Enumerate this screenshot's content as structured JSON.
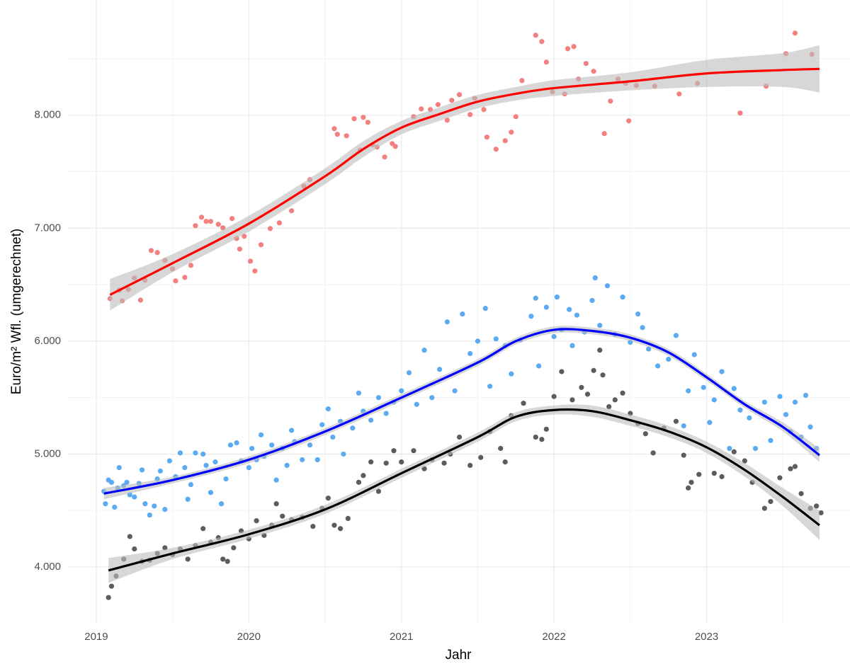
{
  "chart_data": {
    "type": "scatter",
    "xlabel": "Jahr",
    "ylabel": "Euro/m² Wfl. (umgerechnet)",
    "xlim": [
      2018.81,
      2023.94
    ],
    "ylim": [
      3505,
      9020
    ],
    "xticks": [
      2019,
      2020,
      2021,
      2022,
      2023
    ],
    "yticks": [
      {
        "value": 4000,
        "label": "4.000"
      },
      {
        "value": 5000,
        "label": "5.000"
      },
      {
        "value": 6000,
        "label": "6.000"
      },
      {
        "value": 7000,
        "label": "7.000"
      },
      {
        "value": 8000,
        "label": "8.000"
      }
    ],
    "grid": true,
    "minor_grid": true,
    "band_color": "#bdbdbd",
    "series": [
      {
        "color": "#f37f7f",
        "x": [
          2019.09,
          2019.15,
          2019.17,
          2019.21,
          2019.25,
          2019.29,
          2019.32,
          2019.36,
          2019.4,
          2019.45,
          2019.5,
          2019.52,
          2019.58,
          2019.62,
          2019.65,
          2019.69,
          2019.72,
          2019.75,
          2019.8,
          2019.83,
          2019.89,
          2019.92,
          2019.94,
          2019.97,
          2020.01,
          2020.04,
          2020.08,
          2020.14,
          2020.2,
          2020.28,
          2020.36,
          2020.4,
          2020.56,
          2020.58,
          2020.64,
          2020.69,
          2020.73,
          2020.75,
          2020.78,
          2020.81,
          2020.84,
          2020.89,
          2020.94,
          2020.96,
          2021.08,
          2021.13,
          2021.19,
          2021.24,
          2021.3,
          2021.33,
          2021.38,
          2021.45,
          2021.48,
          2021.54,
          2021.56,
          2021.62,
          2021.68,
          2021.72,
          2021.75,
          2021.79,
          2021.88,
          2021.92,
          2021.95,
          2021.99,
          2022.07,
          2022.09,
          2022.13,
          2022.16,
          2022.21,
          2022.26,
          2022.33,
          2022.37,
          2022.42,
          2022.47,
          2022.49,
          2022.54,
          2022.66,
          2022.82,
          2022.94,
          2023.22,
          2023.39,
          2023.52,
          2023.58,
          2023.69
        ],
        "values": [
          6376,
          6451,
          6357,
          6458,
          6558,
          6363,
          6539,
          6802,
          6784,
          6715,
          6639,
          6533,
          6564,
          6671,
          7022,
          7097,
          7060,
          7060,
          7034,
          7003,
          7085,
          6909,
          6815,
          6928,
          6708,
          6621,
          6853,
          6997,
          7047,
          7154,
          7373,
          7429,
          7881,
          7831,
          7818,
          7969,
          7692,
          7981,
          7937,
          7737,
          7718,
          7630,
          7749,
          7724,
          7987,
          8056,
          8050,
          8094,
          7956,
          8132,
          8182,
          8006,
          8150,
          8050,
          7806,
          7699,
          7774,
          7850,
          7987,
          8307,
          8708,
          8652,
          8470,
          8207,
          8188,
          8589,
          8608,
          8320,
          8458,
          8389,
          7837,
          8125,
          8320,
          8282,
          7950,
          8263,
          8257,
          8188,
          8282,
          8019,
          8257,
          8545,
          8727,
          8539
        ]
      },
      {
        "color": "#5aabf2",
        "x": [
          2019.05,
          2019.06,
          2019.08,
          2019.1,
          2019.12,
          2019.14,
          2019.15,
          2019.18,
          2019.2,
          2019.22,
          2019.25,
          2019.28,
          2019.3,
          2019.32,
          2019.35,
          2019.38,
          2019.4,
          2019.42,
          2019.45,
          2019.48,
          2019.52,
          2019.55,
          2019.58,
          2019.6,
          2019.62,
          2019.65,
          2019.7,
          2019.72,
          2019.75,
          2019.78,
          2019.82,
          2019.85,
          2019.88,
          2019.92,
          2019.95,
          2020.0,
          2020.02,
          2020.05,
          2020.08,
          2020.1,
          2020.15,
          2020.18,
          2020.22,
          2020.25,
          2020.28,
          2020.3,
          2020.35,
          2020.4,
          2020.45,
          2020.48,
          2020.52,
          2020.55,
          2020.6,
          2020.62,
          2020.68,
          2020.72,
          2020.75,
          2020.8,
          2020.85,
          2020.9,
          2020.95,
          2021.0,
          2021.05,
          2021.1,
          2021.15,
          2021.2,
          2021.25,
          2021.3,
          2021.35,
          2021.4,
          2021.45,
          2021.5,
          2021.55,
          2021.58,
          2021.62,
          2021.68,
          2021.72,
          2021.78,
          2021.85,
          2021.88,
          2021.9,
          2021.95,
          2022.0,
          2022.02,
          2022.05,
          2022.1,
          2022.12,
          2022.15,
          2022.2,
          2022.25,
          2022.27,
          2022.3,
          2022.35,
          2022.4,
          2022.45,
          2022.5,
          2022.55,
          2022.58,
          2022.62,
          2022.68,
          2022.75,
          2022.8,
          2022.85,
          2022.88,
          2022.92,
          2022.98,
          2023.02,
          2023.05,
          2023.1,
          2023.15,
          2023.18,
          2023.22,
          2023.28,
          2023.32,
          2023.38,
          2023.42,
          2023.48,
          2023.52,
          2023.55,
          2023.58,
          2023.62,
          2023.65,
          2023.68,
          2023.72
        ],
        "values": [
          4670,
          4560,
          4770,
          4750,
          4530,
          4700,
          4880,
          4720,
          4750,
          4640,
          4620,
          4740,
          4860,
          4560,
          4460,
          4540,
          4780,
          4850,
          4510,
          4940,
          4800,
          5010,
          4880,
          4600,
          4730,
          5010,
          5000,
          4900,
          4660,
          4930,
          4560,
          4780,
          5080,
          5100,
          4940,
          4880,
          5050,
          4950,
          5170,
          4980,
          5080,
          4770,
          5050,
          4900,
          5210,
          5110,
          4950,
          5080,
          4950,
          5260,
          5400,
          5150,
          5290,
          5000,
          5230,
          5540,
          5380,
          5300,
          5500,
          5360,
          5460,
          5560,
          5720,
          5440,
          5920,
          5500,
          5750,
          6170,
          5560,
          6240,
          5890,
          6000,
          6290,
          5600,
          6020,
          5960,
          5710,
          6010,
          6220,
          6380,
          5780,
          6300,
          6040,
          6390,
          6100,
          6280,
          5960,
          6230,
          6080,
          6360,
          6560,
          6140,
          6490,
          6060,
          6390,
          5990,
          6240,
          6120,
          5930,
          5780,
          5840,
          6050,
          5250,
          5560,
          5880,
          5590,
          5280,
          5480,
          5730,
          5050,
          5580,
          5390,
          5320,
          5050,
          5460,
          5120,
          5510,
          5350,
          5200,
          5460,
          5150,
          5520,
          5240,
          5050
        ]
      },
      {
        "color": "#5c5c5c",
        "x": [
          2019.08,
          2019.1,
          2019.13,
          2019.18,
          2019.22,
          2019.25,
          2019.3,
          2019.35,
          2019.4,
          2019.45,
          2019.5,
          2019.55,
          2019.6,
          2019.65,
          2019.7,
          2019.75,
          2019.8,
          2019.83,
          2019.86,
          2019.9,
          2019.95,
          2020.0,
          2020.05,
          2020.1,
          2020.15,
          2020.18,
          2020.22,
          2020.28,
          2020.35,
          2020.42,
          2020.48,
          2020.52,
          2020.56,
          2020.6,
          2020.65,
          2020.72,
          2020.75,
          2020.8,
          2020.85,
          2020.9,
          2020.95,
          2021.0,
          2021.08,
          2021.15,
          2021.2,
          2021.28,
          2021.32,
          2021.38,
          2021.45,
          2021.52,
          2021.58,
          2021.65,
          2021.68,
          2021.72,
          2021.8,
          2021.88,
          2021.92,
          2021.95,
          2022.0,
          2022.05,
          2022.12,
          2022.18,
          2022.22,
          2022.26,
          2022.3,
          2022.32,
          2022.36,
          2022.4,
          2022.45,
          2022.5,
          2022.55,
          2022.6,
          2022.65,
          2022.72,
          2022.8,
          2022.85,
          2022.88,
          2022.9,
          2022.95,
          2023.05,
          2023.1,
          2023.18,
          2023.25,
          2023.3,
          2023.38,
          2023.42,
          2023.48,
          2023.55,
          2023.58,
          2023.62,
          2023.68,
          2023.72,
          2023.75
        ],
        "values": [
          3730,
          3830,
          3920,
          4070,
          4270,
          4160,
          4050,
          4060,
          4120,
          4170,
          4110,
          4160,
          4070,
          4190,
          4340,
          4220,
          4260,
          4070,
          4050,
          4170,
          4320,
          4250,
          4410,
          4280,
          4370,
          4560,
          4450,
          4420,
          4440,
          4360,
          4520,
          4610,
          4370,
          4340,
          4430,
          4750,
          4810,
          4930,
          4670,
          4920,
          5030,
          4930,
          5030,
          4870,
          4950,
          4920,
          5000,
          5150,
          4900,
          4970,
          5200,
          5050,
          4930,
          5340,
          5450,
          5150,
          5130,
          5220,
          5510,
          5730,
          5480,
          5590,
          5530,
          5740,
          5920,
          5700,
          5420,
          5480,
          5540,
          5360,
          5270,
          5180,
          5010,
          5230,
          5290,
          4990,
          4700,
          4750,
          4820,
          4830,
          4800,
          5020,
          4940,
          4750,
          4520,
          4580,
          4790,
          4870,
          4890,
          4650,
          4520,
          4540,
          4480
        ]
      }
    ],
    "fits": [
      {
        "color": "#ff0000",
        "x": [
          2019.09,
          2019.5,
          2020,
          2020.5,
          2020.75,
          2021,
          2021.25,
          2021.5,
          2021.75,
          2022,
          2022.5,
          2023,
          2023.5,
          2023.74
        ],
        "values": [
          6410,
          6690,
          7040,
          7460,
          7700,
          7890,
          8010,
          8120,
          8190,
          8240,
          8300,
          8370,
          8400,
          8410
        ],
        "lower": [
          6270,
          6610,
          6970,
          7390,
          7630,
          7830,
          7950,
          8060,
          8130,
          8170,
          8220,
          8250,
          8250,
          8200
        ],
        "upper": [
          6550,
          6770,
          7110,
          7530,
          7770,
          7950,
          8070,
          8180,
          8250,
          8310,
          8380,
          8490,
          8550,
          8620
        ]
      },
      {
        "color": "#0000ff",
        "x": [
          2019.05,
          2019.5,
          2020,
          2020.5,
          2021,
          2021.5,
          2021.75,
          2022,
          2022.25,
          2022.5,
          2022.75,
          2023,
          2023.25,
          2023.5,
          2023.74
        ],
        "values": [
          4650,
          4770,
          4950,
          5200,
          5500,
          5810,
          6000,
          6100,
          6090,
          6030,
          5900,
          5680,
          5440,
          5240,
          4990
        ],
        "lower": [
          4600,
          4740,
          4920,
          5170,
          5470,
          5780,
          5970,
          6070,
          6060,
          6000,
          5870,
          5650,
          5410,
          5200,
          4930
        ],
        "upper": [
          4700,
          4800,
          4980,
          5230,
          5530,
          5840,
          6030,
          6130,
          6120,
          6060,
          5930,
          5710,
          5470,
          5280,
          5050
        ]
      },
      {
        "color": "#000000",
        "x": [
          2019.08,
          2019.5,
          2020,
          2020.5,
          2021,
          2021.5,
          2021.75,
          2022,
          2022.25,
          2022.5,
          2022.75,
          2023,
          2023.25,
          2023.5,
          2023.74
        ],
        "values": [
          3970,
          4120,
          4290,
          4510,
          4830,
          5150,
          5330,
          5390,
          5380,
          5300,
          5200,
          5060,
          4860,
          4620,
          4370
        ],
        "lower": [
          3860,
          4070,
          4250,
          4470,
          4790,
          5110,
          5290,
          5350,
          5330,
          5250,
          5150,
          5010,
          4800,
          4540,
          4240
        ],
        "upper": [
          4080,
          4170,
          4330,
          4550,
          4870,
          5190,
          5370,
          5430,
          5430,
          5350,
          5250,
          5110,
          4920,
          4700,
          4500
        ]
      }
    ]
  }
}
